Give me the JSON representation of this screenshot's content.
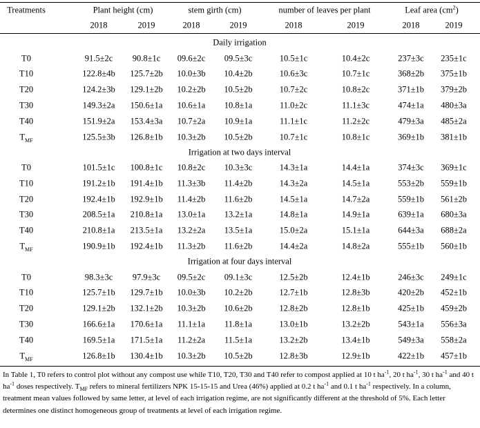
{
  "table": {
    "corner": "Treatments",
    "groups": [
      {
        "title": "Plant height (cm)",
        "years": [
          "2018",
          "2019"
        ]
      },
      {
        "title": "stem girth (cm)",
        "years": [
          "2018",
          "2019"
        ]
      },
      {
        "title": "number of leaves per plant",
        "years": [
          "2018",
          "2019"
        ]
      },
      {
        "title": "Leaf area (cm",
        "title_sup": "2",
        "title_end": ")",
        "years": [
          "2018",
          "2019"
        ]
      }
    ],
    "sections": [
      {
        "title": "Daily irrigation",
        "rows": [
          {
            "treatment": "T0",
            "values": [
              "91.5±2c",
              "90.8±1c",
              "09.6±2c",
              "09.5±3c",
              "10.5±1c",
              "10.4±2c",
              "237±3c",
              "235±1c"
            ]
          },
          {
            "treatment": "T10",
            "values": [
              "122.8±4b",
              "125.7±2b",
              "10.0±3b",
              "10.4±2b",
              "10.6±3c",
              "10.7±1c",
              "368±2b",
              "375±1b"
            ]
          },
          {
            "treatment": "T20",
            "values": [
              "124.2±3b",
              "129.1±2b",
              "10.2±2b",
              "10.5±2b",
              "10.7±2c",
              "10.8±2c",
              "371±1b",
              "379±2b"
            ]
          },
          {
            "treatment": "T30",
            "values": [
              "149.3±2a",
              "150.6±1a",
              "10.6±1a",
              "10.8±1a",
              "11.0±2c",
              "11.1±3c",
              "474±1a",
              "480±3a"
            ]
          },
          {
            "treatment": "T40",
            "values": [
              "151.9±2a",
              "153.4±3a",
              "10.7±2a",
              "10.9±1a",
              "11.1±1c",
              "11.2±2c",
              "479±3a",
              "485±2a"
            ]
          },
          {
            "treatment": "T",
            "treatment_sub": "MF",
            "values": [
              "125.5±3b",
              "126.8±1b",
              "10.3±2b",
              "10.5±2b",
              "10.7±1c",
              "10.8±1c",
              "369±1b",
              "381±1b"
            ]
          }
        ]
      },
      {
        "title": "Irrigation at two days interval",
        "rows": [
          {
            "treatment": "T0",
            "values": [
              "101.5±1c",
              "100.8±1c",
              "10.8±2c",
              "10.3±3c",
              "14.3±1a",
              "14.4±1a",
              "374±3c",
              "369±1c"
            ]
          },
          {
            "treatment": "T10",
            "values": [
              "191.2±1b",
              "191.4±1b",
              "11.3±3b",
              "11.4±2b",
              "14.3±2a",
              "14.5±1a",
              "553±2b",
              "559±1b"
            ]
          },
          {
            "treatment": "T20",
            "values": [
              "192.4±1b",
              "192.9±1b",
              "11.4±2b",
              "11.6±2b",
              "14.5±1a",
              "14.7±2a",
              "559±1b",
              "561±2b"
            ]
          },
          {
            "treatment": "T30",
            "values": [
              "208.5±1a",
              "210.8±1a",
              "13.0±1a",
              "13.2±1a",
              "14.8±1a",
              "14.9±1a",
              "639±1a",
              "680±3a"
            ]
          },
          {
            "treatment": "T40",
            "values": [
              "210.8±1a",
              "213.5±1a",
              "13.2±2a",
              "13.5±1a",
              "15.0±2a",
              "15.1±1a",
              "644±3a",
              "688±2a"
            ]
          },
          {
            "treatment": "T",
            "treatment_sub": "MF",
            "values": [
              "190.9±1b",
              "192.4±1b",
              "11.3±2b",
              "11.6±2b",
              "14.4±2a",
              "14.8±2a",
              "555±1b",
              "560±1b"
            ]
          }
        ]
      },
      {
        "title": "Irrigation at four days interval",
        "rows": [
          {
            "treatment": "T0",
            "values": [
              "98.3±3c",
              "97.9±3c",
              "09.5±2c",
              "09.1±3c",
              "12.5±2b",
              "12.4±1b",
              "246±3c",
              "249±1c"
            ]
          },
          {
            "treatment": "T10",
            "values": [
              "125.7±1b",
              "129.7±1b",
              "10.0±3b",
              "10.2±2b",
              "12.7±1b",
              "12.8±3b",
              "420±2b",
              "452±1b"
            ]
          },
          {
            "treatment": "T20",
            "values": [
              "129.1±2b",
              "132.1±2b",
              "10.3±2b",
              "10.6±2b",
              "12.8±2b",
              "12.8±1b",
              "425±1b",
              "459±2b"
            ]
          },
          {
            "treatment": "T30",
            "values": [
              "166.6±1a",
              "170.6±1a",
              "11.1±1a",
              "11.8±1a",
              "13.0±1b",
              "13.2±2b",
              "543±1a",
              "556±3a"
            ]
          },
          {
            "treatment": "T40",
            "values": [
              "169.5±1a",
              "171.5±1a",
              "11.2±2a",
              "11.5±1a",
              "13.2±2b",
              "13.4±1b",
              "549±3a",
              "558±2a"
            ]
          },
          {
            "treatment": "T",
            "treatment_sub": "MF",
            "values": [
              "126.8±1b",
              "130.4±1b",
              "10.3±2b",
              "10.5±2b",
              "12.8±3b",
              "12.9±1b",
              "422±1b",
              "457±1b"
            ]
          }
        ]
      }
    ]
  },
  "footnote": [
    "In Table 1, T0 refers to control plot without any compost use while T10, T20, T30 and T40 refer to compost applied at 10 t ha",
    {
      "sup": "-1"
    },
    ", 20 t ha",
    {
      "sup": "-1"
    },
    ", 30 t ha",
    {
      "sup": "-1"
    },
    " and 40 t ha",
    {
      "sup": "-1"
    },
    " doses respectively. T",
    {
      "sub": "MF"
    },
    " refers to mineral fertilizers NPK 15-15-15 and Urea (46%) applied at 0.2 t ha",
    {
      "sup": "-1"
    },
    " and 0.1 t ha",
    {
      "sup": "-1"
    },
    " respectively. In a column, treatment mean values followed by same letter, at level of each irrigation regime, are not significantly different at the threshold of 5%. Each letter determines one distinct homogeneous group of treatments at level of each irrigation regime."
  ]
}
